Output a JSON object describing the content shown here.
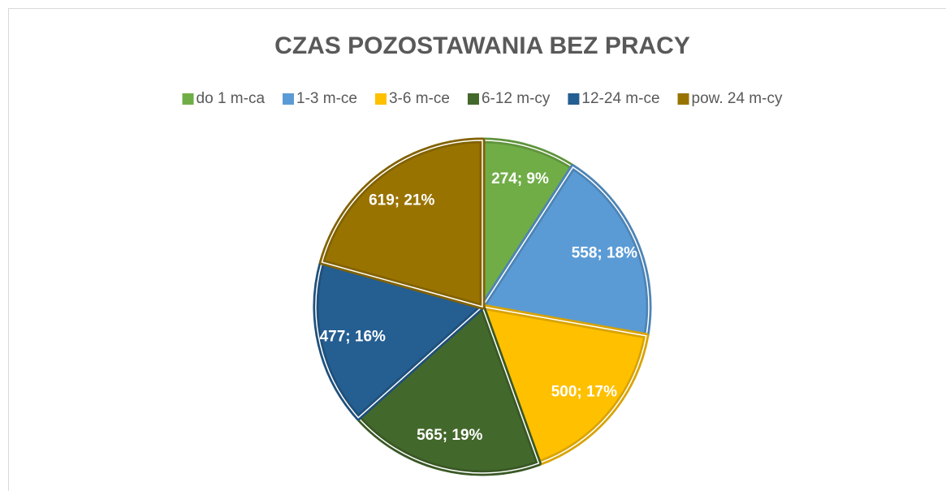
{
  "chart_data": {
    "type": "pie",
    "title": "CZAS POZOSTAWANIA BEZ PRACY",
    "categories": [
      "do 1 m-ca",
      "1-3 m-ce",
      "3-6 m-ce",
      "6-12 m-cy",
      "12-24 m-ce",
      "pow. 24 m-cy"
    ],
    "values": [
      274,
      558,
      500,
      565,
      477,
      619
    ],
    "value_labels": [
      "274; 9%",
      "558; 18%",
      "500; 17%",
      "565; 19%",
      "477; 16%",
      "619; 21%"
    ],
    "colors": [
      "#70ad47",
      "#5b9bd5",
      "#ffc000",
      "#43682b",
      "#255e91",
      "#997300"
    ],
    "legend": "top"
  }
}
